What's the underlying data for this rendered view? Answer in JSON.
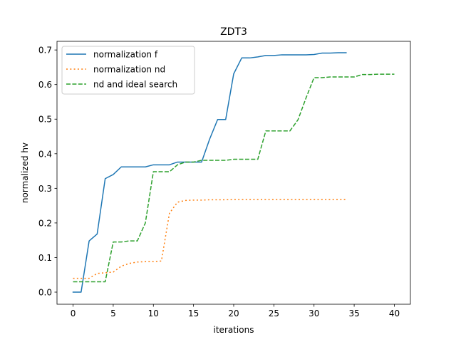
{
  "chart_data": {
    "type": "line",
    "title": "ZDT3",
    "xlabel": "iterations",
    "ylabel": "normalized hv",
    "xlim": [
      -2,
      42
    ],
    "ylim": [
      -0.035,
      0.725
    ],
    "xticks": [
      0,
      5,
      10,
      15,
      20,
      25,
      30,
      35,
      40
    ],
    "yticks": [
      0.0,
      0.1,
      0.2,
      0.3,
      0.4,
      0.5,
      0.6,
      0.7
    ],
    "xtick_labels": [
      "0",
      "5",
      "10",
      "15",
      "20",
      "25",
      "30",
      "35",
      "40"
    ],
    "ytick_labels": [
      "0.0",
      "0.1",
      "0.2",
      "0.3",
      "0.4",
      "0.5",
      "0.6",
      "0.7"
    ],
    "grid": false,
    "legend_position": "top-left",
    "series": [
      {
        "name": "normalization f",
        "color": "#1f77b4",
        "style": "solid",
        "x": [
          0,
          1,
          2,
          3,
          4,
          5,
          6,
          7,
          8,
          9,
          10,
          11,
          12,
          13,
          14,
          15,
          16,
          17,
          18,
          19,
          20,
          21,
          22,
          23,
          24,
          25,
          26,
          27,
          28,
          29,
          30,
          31,
          32,
          33,
          34
        ],
        "y": [
          0.0,
          0.0,
          0.148,
          0.168,
          0.328,
          0.34,
          0.362,
          0.362,
          0.362,
          0.362,
          0.368,
          0.368,
          0.368,
          0.376,
          0.376,
          0.376,
          0.376,
          0.442,
          0.499,
          0.499,
          0.631,
          0.677,
          0.677,
          0.68,
          0.684,
          0.684,
          0.686,
          0.686,
          0.686,
          0.686,
          0.687,
          0.691,
          0.691,
          0.692,
          0.692
        ]
      },
      {
        "name": "normalization nd",
        "color": "#ff7f0e",
        "style": "dotted",
        "x": [
          0,
          1,
          2,
          3,
          4,
          5,
          6,
          7,
          8,
          9,
          10,
          11,
          12,
          13,
          14,
          15,
          16,
          17,
          18,
          19,
          20,
          21,
          22,
          23,
          24,
          25,
          26,
          27,
          28,
          29,
          30,
          31,
          32,
          33,
          34
        ],
        "y": [
          0.04,
          0.04,
          0.04,
          0.054,
          0.056,
          0.058,
          0.075,
          0.083,
          0.087,
          0.088,
          0.088,
          0.09,
          0.228,
          0.26,
          0.265,
          0.266,
          0.266,
          0.267,
          0.267,
          0.267,
          0.268,
          0.268,
          0.268,
          0.268,
          0.268,
          0.268,
          0.268,
          0.268,
          0.268,
          0.268,
          0.268,
          0.268,
          0.268,
          0.268,
          0.268
        ]
      },
      {
        "name": "nd and ideal search",
        "color": "#2ca02c",
        "style": "dashed",
        "x": [
          0,
          1,
          2,
          3,
          4,
          5,
          6,
          7,
          8,
          9,
          10,
          11,
          12,
          13,
          14,
          15,
          16,
          17,
          18,
          19,
          20,
          21,
          22,
          23,
          24,
          25,
          26,
          27,
          28,
          29,
          30,
          31,
          32,
          33,
          34,
          35,
          36,
          37,
          38,
          39,
          40
        ],
        "y": [
          0.03,
          0.03,
          0.03,
          0.03,
          0.03,
          0.145,
          0.145,
          0.148,
          0.148,
          0.2,
          0.348,
          0.348,
          0.348,
          0.368,
          0.376,
          0.376,
          0.381,
          0.381,
          0.381,
          0.381,
          0.384,
          0.384,
          0.384,
          0.384,
          0.466,
          0.466,
          0.466,
          0.466,
          0.498,
          0.561,
          0.62,
          0.62,
          0.622,
          0.622,
          0.622,
          0.622,
          0.629,
          0.629,
          0.63,
          0.63,
          0.63
        ]
      }
    ]
  }
}
